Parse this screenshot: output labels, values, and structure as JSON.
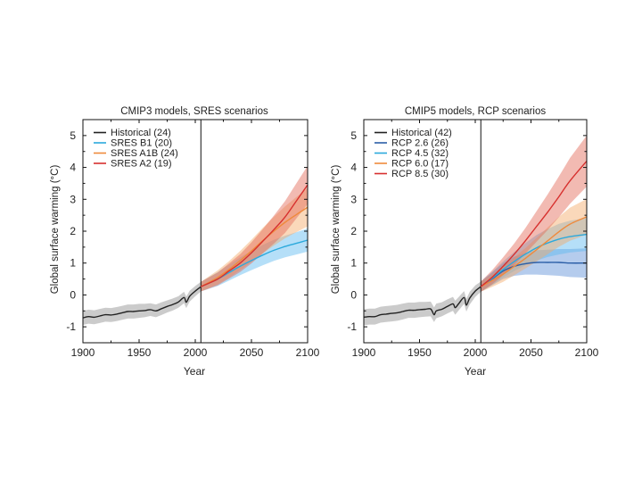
{
  "chart_data": [
    {
      "type": "line",
      "title": "CMIP3 models, SRES scenarios",
      "xlabel": "Year",
      "ylabel": "Global surface warming (°C)",
      "xlim": [
        1900,
        2100
      ],
      "ylim": [
        -1.5,
        5.5
      ],
      "xticks": [
        1900,
        1950,
        2000,
        2050,
        2100
      ],
      "yticks": [
        -1,
        0,
        1,
        2,
        3,
        4,
        5
      ],
      "vline": 2005,
      "grid": false,
      "legend_position": "top-left",
      "series": [
        {
          "name": "Historical (24)",
          "color": "#222222",
          "band_color": "#8c8c8c",
          "x": [
            1900,
            1905,
            1910,
            1915,
            1920,
            1925,
            1930,
            1935,
            1940,
            1945,
            1950,
            1955,
            1960,
            1965,
            1970,
            1975,
            1980,
            1985,
            1990,
            1992,
            1995,
            2000,
            2005
          ],
          "values": [
            -0.72,
            -0.68,
            -0.7,
            -0.66,
            -0.62,
            -0.63,
            -0.6,
            -0.56,
            -0.52,
            -0.52,
            -0.5,
            -0.49,
            -0.46,
            -0.5,
            -0.43,
            -0.36,
            -0.3,
            -0.22,
            -0.08,
            -0.23,
            -0.04,
            0.12,
            0.26
          ],
          "band": [
            0.22,
            0.22,
            0.22,
            0.22,
            0.22,
            0.22,
            0.22,
            0.22,
            0.22,
            0.22,
            0.22,
            0.21,
            0.2,
            0.2,
            0.2,
            0.19,
            0.19,
            0.18,
            0.18,
            0.18,
            0.17,
            0.16,
            0.15
          ]
        },
        {
          "name": "SRES B1 (20)",
          "color": "#2ba9dc",
          "band_color": "#5ab8f0",
          "x": [
            2005,
            2020,
            2030,
            2040,
            2050,
            2060,
            2070,
            2080,
            2090,
            2100
          ],
          "values": [
            0.26,
            0.5,
            0.7,
            0.9,
            1.08,
            1.25,
            1.4,
            1.52,
            1.62,
            1.72
          ],
          "band": [
            0.15,
            0.22,
            0.25,
            0.28,
            0.3,
            0.32,
            0.33,
            0.34,
            0.35,
            0.36
          ]
        },
        {
          "name": "SRES A1B (24)",
          "color": "#ef8a3c",
          "band_color": "#f5a866",
          "x": [
            2005,
            2020,
            2030,
            2040,
            2050,
            2060,
            2070,
            2080,
            2090,
            2100
          ],
          "values": [
            0.26,
            0.55,
            0.8,
            1.08,
            1.38,
            1.7,
            2.0,
            2.28,
            2.52,
            2.75
          ],
          "band": [
            0.15,
            0.22,
            0.26,
            0.3,
            0.35,
            0.4,
            0.45,
            0.5,
            0.55,
            0.6
          ]
        },
        {
          "name": "SRES A2 (19)",
          "color": "#d7302e",
          "band_color": "#e36654",
          "x": [
            2005,
            2020,
            2030,
            2040,
            2050,
            2060,
            2070,
            2080,
            2090,
            2100
          ],
          "values": [
            0.26,
            0.5,
            0.75,
            1.0,
            1.32,
            1.68,
            2.05,
            2.45,
            2.95,
            3.45
          ],
          "band": [
            0.15,
            0.2,
            0.24,
            0.28,
            0.33,
            0.38,
            0.44,
            0.5,
            0.55,
            0.6
          ]
        }
      ]
    },
    {
      "type": "line",
      "title": "CMIP5 models, RCP scenarios",
      "xlabel": "Year",
      "ylabel": "Global surface warming (°C)",
      "xlim": [
        1900,
        2100
      ],
      "ylim": [
        -1.5,
        5.5
      ],
      "xticks": [
        1900,
        1950,
        2000,
        2050,
        2100
      ],
      "yticks": [
        -1,
        0,
        1,
        2,
        3,
        4,
        5
      ],
      "vline": 2005,
      "grid": false,
      "legend_position": "top-left",
      "series": [
        {
          "name": "Historical (42)",
          "color": "#222222",
          "band_color": "#8c8c8c",
          "x": [
            1900,
            1905,
            1910,
            1915,
            1920,
            1925,
            1930,
            1935,
            1940,
            1945,
            1950,
            1955,
            1960,
            1963,
            1965,
            1970,
            1975,
            1980,
            1982,
            1985,
            1990,
            1992,
            1995,
            2000,
            2005
          ],
          "values": [
            -0.7,
            -0.68,
            -0.68,
            -0.62,
            -0.6,
            -0.58,
            -0.56,
            -0.52,
            -0.48,
            -0.48,
            -0.46,
            -0.45,
            -0.44,
            -0.62,
            -0.5,
            -0.45,
            -0.36,
            -0.28,
            -0.4,
            -0.28,
            -0.08,
            -0.32,
            -0.1,
            0.12,
            0.26
          ],
          "band": [
            0.25,
            0.25,
            0.25,
            0.25,
            0.25,
            0.25,
            0.25,
            0.25,
            0.24,
            0.24,
            0.24,
            0.23,
            0.23,
            0.23,
            0.23,
            0.22,
            0.22,
            0.22,
            0.22,
            0.21,
            0.2,
            0.2,
            0.2,
            0.18,
            0.16
          ]
        },
        {
          "name": "RCP 2.6 (26)",
          "color": "#2b5ea7",
          "band_color": "#5a8fd8",
          "x": [
            2005,
            2015,
            2025,
            2035,
            2045,
            2055,
            2065,
            2075,
            2085,
            2100
          ],
          "values": [
            0.26,
            0.5,
            0.75,
            0.9,
            0.98,
            1.02,
            1.02,
            1.02,
            1.0,
            1.0
          ],
          "band": [
            0.16,
            0.2,
            0.25,
            0.3,
            0.34,
            0.38,
            0.4,
            0.42,
            0.44,
            0.46
          ]
        },
        {
          "name": "RCP 4.5 (32)",
          "color": "#2ba9dc",
          "band_color": "#5ab8f0",
          "x": [
            2005,
            2015,
            2025,
            2035,
            2045,
            2055,
            2065,
            2075,
            2085,
            2100
          ],
          "values": [
            0.26,
            0.52,
            0.8,
            1.05,
            1.28,
            1.48,
            1.63,
            1.75,
            1.83,
            1.9
          ],
          "band": [
            0.16,
            0.2,
            0.25,
            0.3,
            0.35,
            0.4,
            0.44,
            0.48,
            0.5,
            0.52
          ]
        },
        {
          "name": "RCP 6.0 (17)",
          "color": "#ef8a3c",
          "band_color": "#f5a866",
          "x": [
            2005,
            2015,
            2025,
            2035,
            2045,
            2055,
            2065,
            2075,
            2085,
            2100
          ],
          "values": [
            0.26,
            0.45,
            0.65,
            0.9,
            1.15,
            1.42,
            1.7,
            1.98,
            2.22,
            2.45
          ],
          "band": [
            0.16,
            0.2,
            0.24,
            0.28,
            0.32,
            0.37,
            0.42,
            0.47,
            0.52,
            0.56
          ]
        },
        {
          "name": "RCP 8.5 (30)",
          "color": "#d7302e",
          "band_color": "#e36654",
          "x": [
            2005,
            2015,
            2025,
            2035,
            2045,
            2055,
            2065,
            2075,
            2085,
            2100
          ],
          "values": [
            0.26,
            0.55,
            0.9,
            1.28,
            1.7,
            2.15,
            2.6,
            3.08,
            3.58,
            4.2
          ],
          "band": [
            0.16,
            0.22,
            0.28,
            0.34,
            0.4,
            0.48,
            0.56,
            0.64,
            0.72,
            0.8
          ]
        }
      ]
    }
  ]
}
